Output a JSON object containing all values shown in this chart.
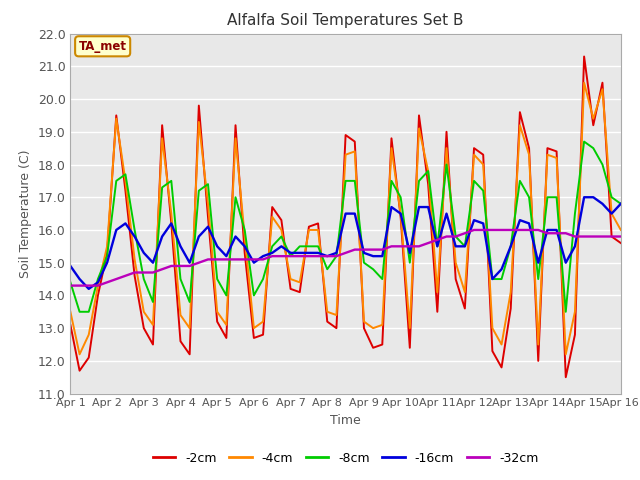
{
  "title": "Alfalfa Soil Temperatures Set B",
  "xlabel": "Time",
  "ylabel": "Soil Temperature (C)",
  "ylim": [
    11.0,
    22.0
  ],
  "yticks": [
    11.0,
    12.0,
    13.0,
    14.0,
    15.0,
    16.0,
    17.0,
    18.0,
    19.0,
    20.0,
    21.0,
    22.0
  ],
  "fig_bg_color": "#ffffff",
  "plot_bg_color": "#e8e8e8",
  "ta_met_label": "TA_met",
  "series": {
    "-2cm": {
      "color": "#dd0000",
      "lw": 1.4,
      "values": [
        13.1,
        11.7,
        12.1,
        14.0,
        15.3,
        19.5,
        17.2,
        14.6,
        13.0,
        12.5,
        19.2,
        16.2,
        12.6,
        12.2,
        19.8,
        16.4,
        13.2,
        12.7,
        19.2,
        15.3,
        12.7,
        12.8,
        16.7,
        16.3,
        14.2,
        14.1,
        16.1,
        16.2,
        13.2,
        13.0,
        18.9,
        18.7,
        13.0,
        12.4,
        12.5,
        18.8,
        16.4,
        12.4,
        19.5,
        17.4,
        13.5,
        19.0,
        14.5,
        13.6,
        18.5,
        18.3,
        12.3,
        11.8,
        13.6,
        19.6,
        18.5,
        12.0,
        18.5,
        18.4,
        11.5,
        12.8,
        21.3,
        19.2,
        20.5,
        15.8,
        15.6
      ]
    },
    "-4cm": {
      "color": "#ff8800",
      "lw": 1.4,
      "values": [
        13.5,
        12.2,
        12.8,
        14.3,
        15.5,
        19.4,
        17.5,
        15.1,
        13.5,
        13.1,
        18.8,
        16.5,
        13.4,
        13.0,
        19.3,
        16.8,
        13.5,
        13.1,
        18.8,
        15.8,
        13.0,
        13.2,
        16.4,
        16.0,
        14.5,
        14.4,
        16.0,
        16.0,
        13.5,
        13.4,
        18.3,
        18.4,
        13.2,
        13.0,
        13.1,
        18.5,
        16.5,
        13.0,
        19.1,
        17.8,
        14.1,
        18.5,
        15.0,
        14.1,
        18.3,
        18.0,
        13.0,
        12.5,
        14.1,
        19.2,
        18.3,
        12.5,
        18.3,
        18.2,
        12.2,
        13.5,
        20.5,
        19.4,
        20.3,
        16.5,
        16.0
      ]
    },
    "-8cm": {
      "color": "#00cc00",
      "lw": 1.4,
      "values": [
        14.4,
        13.5,
        13.5,
        14.5,
        15.2,
        17.5,
        17.7,
        16.0,
        14.5,
        13.8,
        17.3,
        17.5,
        14.5,
        13.8,
        17.2,
        17.4,
        14.5,
        14.0,
        17.0,
        16.0,
        14.0,
        14.5,
        15.5,
        15.8,
        15.2,
        15.5,
        15.5,
        15.5,
        14.8,
        15.2,
        17.5,
        17.5,
        15.0,
        14.8,
        14.5,
        17.5,
        17.0,
        15.0,
        17.5,
        17.8,
        15.5,
        18.0,
        15.8,
        15.5,
        17.5,
        17.2,
        14.5,
        14.5,
        15.5,
        17.5,
        17.0,
        14.5,
        17.0,
        17.0,
        13.5,
        16.5,
        18.7,
        18.5,
        18.0,
        17.0,
        16.8
      ]
    },
    "-16cm": {
      "color": "#0000dd",
      "lw": 1.7,
      "values": [
        14.9,
        14.5,
        14.2,
        14.4,
        15.0,
        16.0,
        16.2,
        15.8,
        15.3,
        15.0,
        15.8,
        16.2,
        15.5,
        15.0,
        15.8,
        16.1,
        15.5,
        15.2,
        15.8,
        15.5,
        15.0,
        15.2,
        15.3,
        15.5,
        15.3,
        15.3,
        15.3,
        15.3,
        15.2,
        15.3,
        16.5,
        16.5,
        15.3,
        15.2,
        15.2,
        16.7,
        16.5,
        15.3,
        16.7,
        16.7,
        15.5,
        16.5,
        15.5,
        15.5,
        16.3,
        16.2,
        14.5,
        14.8,
        15.5,
        16.3,
        16.2,
        15.0,
        16.0,
        16.0,
        15.0,
        15.5,
        17.0,
        17.0,
        16.8,
        16.5,
        16.8
      ]
    },
    "-32cm": {
      "color": "#bb00bb",
      "lw": 1.7,
      "values": [
        14.3,
        14.3,
        14.3,
        14.3,
        14.4,
        14.5,
        14.6,
        14.7,
        14.7,
        14.7,
        14.8,
        14.9,
        14.9,
        14.9,
        15.0,
        15.1,
        15.1,
        15.1,
        15.1,
        15.1,
        15.1,
        15.1,
        15.2,
        15.2,
        15.2,
        15.2,
        15.2,
        15.2,
        15.2,
        15.2,
        15.3,
        15.4,
        15.4,
        15.4,
        15.4,
        15.5,
        15.5,
        15.5,
        15.5,
        15.6,
        15.7,
        15.8,
        15.8,
        15.9,
        16.0,
        16.0,
        16.0,
        16.0,
        16.0,
        16.0,
        16.0,
        16.0,
        15.9,
        15.9,
        15.9,
        15.8,
        15.8,
        15.8,
        15.8,
        15.8,
        15.8
      ]
    }
  },
  "xtick_labels": [
    "Apr 1",
    "Apr 2",
    "Apr 3",
    "Apr 4",
    "Apr 5",
    "Apr 6",
    "Apr 7",
    "Apr 8",
    "Apr 9",
    "Apr 10",
    "Apr 11",
    "Apr 12",
    "Apr 13",
    "Apr 14",
    "Apr 15",
    "Apr 16"
  ],
  "n_points": 61,
  "days": 15
}
